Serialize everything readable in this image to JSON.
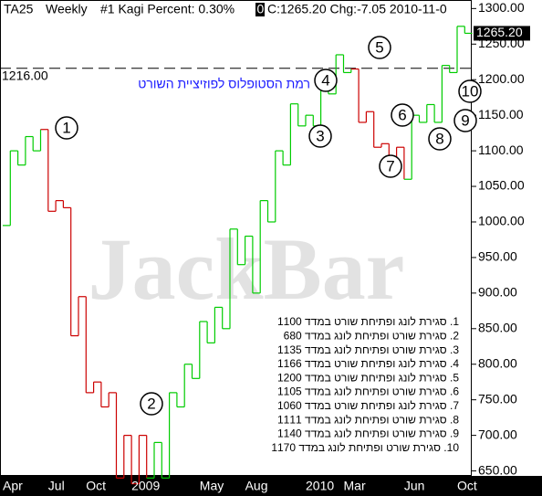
{
  "chart_data": {
    "type": "kagi",
    "header": [
      "TA25",
      "Weekly",
      "#1 Kagi Percent: 0.30%",
      "0",
      "C:1265.20 Chg:-7.05 2010-11-0"
    ],
    "watermark": "JackBar",
    "categories": [
      "Apr",
      null,
      null,
      null,
      null,
      null,
      "Jul",
      null,
      null,
      null,
      null,
      "Oct",
      null,
      null,
      null,
      null,
      null,
      "2009",
      null,
      null,
      null,
      null,
      null,
      null,
      null,
      null,
      "May",
      null,
      null,
      null,
      null,
      null,
      "Aug",
      null,
      null,
      null,
      null,
      null,
      null,
      null,
      "2010",
      null,
      null,
      null,
      null,
      "Mar",
      null,
      null,
      null,
      null,
      null,
      null,
      null,
      "Jun",
      null,
      null,
      null,
      null,
      null,
      null,
      "Oct",
      null
    ],
    "values": [
      995,
      1100,
      1080,
      1120,
      1100,
      1130,
      1015,
      1030,
      1020,
      840,
      895,
      760,
      775,
      740,
      760,
      640,
      700,
      632,
      700,
      640,
      690,
      640,
      760,
      740,
      800,
      780,
      860,
      830,
      880,
      850,
      990,
      940,
      980,
      900,
      1030,
      1000,
      1100,
      1080,
      1166,
      1135,
      1150,
      1135,
      1200,
      1180,
      1235,
      1210,
      1215,
      1140,
      1155,
      1105,
      1110,
      1090,
      1105,
      1060,
      1150,
      1140,
      1165,
      1140,
      1220,
      1210,
      1275,
      1265.2
    ],
    "colors": [
      "#00cc00",
      "#00cc00",
      "#00cc00",
      "#00cc00",
      "#00cc00",
      "#00cc00",
      "#cc0000",
      "#cc0000",
      "#cc0000",
      "#cc0000",
      "#cc0000",
      "#cc0000",
      "#cc0000",
      "#cc0000",
      "#cc0000",
      "#cc0000",
      "#cc0000",
      "#cc0000",
      "#cc0000",
      "#cc0000",
      "#00cc00",
      "#00cc00",
      "#00cc00",
      "#00cc00",
      "#00cc00",
      "#00cc00",
      "#00cc00",
      "#00cc00",
      "#00cc00",
      "#00cc00",
      "#00cc00",
      "#00cc00",
      "#00cc00",
      "#00cc00",
      "#00cc00",
      "#00cc00",
      "#00cc00",
      "#00cc00",
      "#00cc00",
      "#00cc00",
      "#00cc00",
      "#00cc00",
      "#00cc00",
      "#00cc00",
      "#00cc00",
      "#00cc00",
      "#00cc00",
      "#cc0000",
      "#cc0000",
      "#cc0000",
      "#cc0000",
      "#cc0000",
      "#cc0000",
      "#cc0000",
      "#00cc00",
      "#00cc00",
      "#00cc00",
      "#00cc00",
      "#00cc00",
      "#00cc00",
      "#00cc00",
      "#00cc00"
    ],
    "last_price": {
      "value": 1265.2,
      "label": "1265.20"
    },
    "stop_line": {
      "value": 1216,
      "label": "1216.00",
      "note": "רמת הסטופלוס לפוזיציית השורט"
    },
    "markers": [
      "1",
      "2",
      "3",
      "4",
      "5",
      "6",
      "7",
      "8",
      "9",
      "10"
    ],
    "legend": [
      "1. סגירת לונג ופתיחת שורט במדד 1100",
      "2. סגירת שורט ופתיחת לונג במדד 680",
      "3. סגירת שורט ופתיחת לונג במדד 1135",
      "4. סגירת לונג ופתיחת שורט במדד 1166",
      "5. סגירת לונג ופתיחת שורט במדד 1200",
      "6. סגירת שורט ופתיחת לונג במדד 1105",
      "7. סגירת לונג ופתיחת שורט במדד 1060",
      "8. סגירת שורט ופתיחת לונג במדד 1111",
      "9. סגירת שורט ופתיחת לונג במדד 1140",
      "10. סגירת שורט ופתיחת לונג במדד 1170"
    ],
    "ylim": [
      643,
      1312
    ],
    "yticks": [
      {
        "value": 650,
        "label": "650.00"
      },
      {
        "value": 700,
        "label": "700.00"
      },
      {
        "value": 750,
        "label": "750.00"
      },
      {
        "value": 800,
        "label": "800.00"
      },
      {
        "value": 850,
        "label": "850.00"
      },
      {
        "value": 900,
        "label": "900.00"
      },
      {
        "value": 950,
        "label": "950.00"
      },
      {
        "value": 1000,
        "label": "1000.00"
      },
      {
        "value": 1050,
        "label": "1050.00"
      },
      {
        "value": 1100,
        "label": "1100.00"
      },
      {
        "value": 1150,
        "label": "1150.00"
      },
      {
        "value": 1200,
        "label": "1200.00"
      },
      {
        "value": 1250,
        "label": "1250.00"
      },
      {
        "value": 1300,
        "label": "1300.00"
      }
    ]
  }
}
